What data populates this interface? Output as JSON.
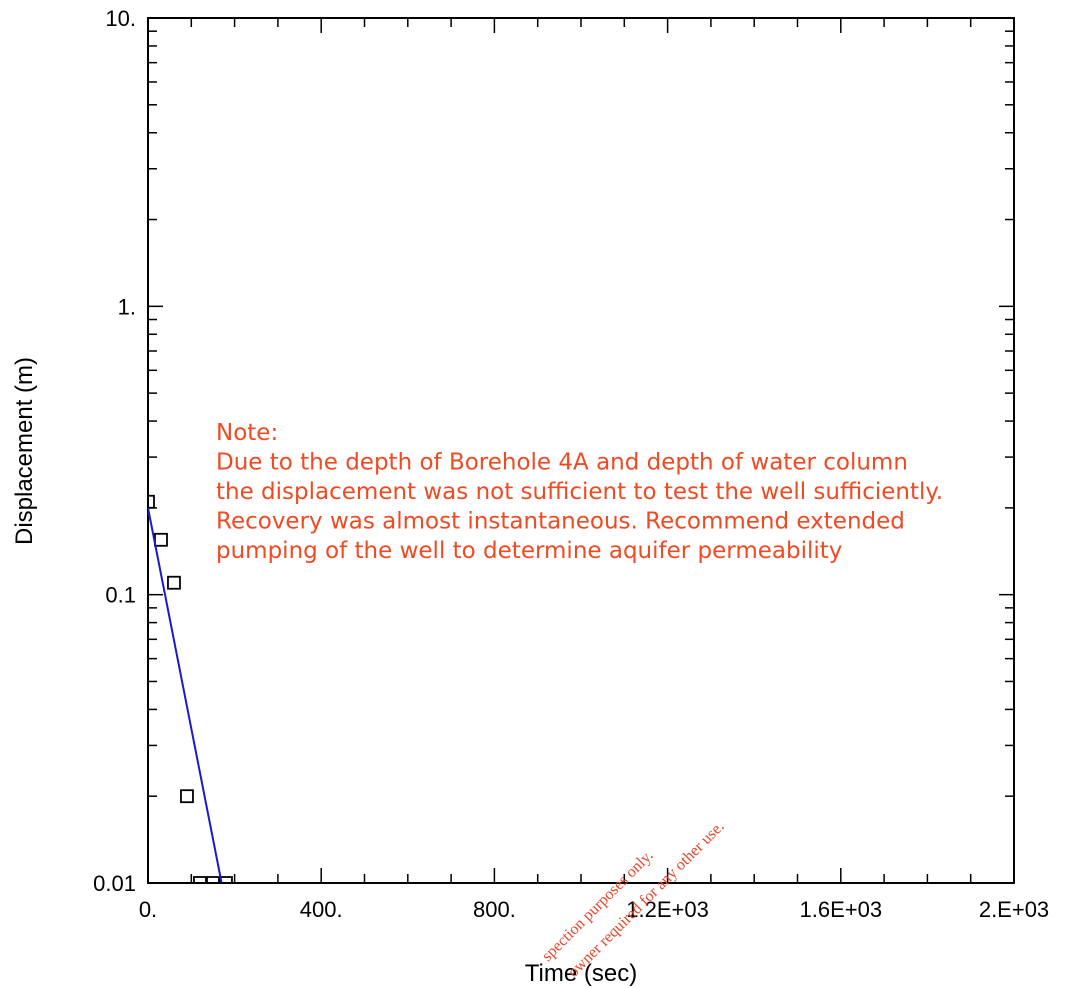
{
  "chart_data": {
    "type": "scatter",
    "title": "",
    "xlabel": "Time (sec)",
    "ylabel": "Displacement (m)",
    "xlim": [
      0,
      2000
    ],
    "ylim": [
      0.01,
      10
    ],
    "y_scale": "log",
    "x_ticks": [
      {
        "value": 0,
        "label": "0."
      },
      {
        "value": 400,
        "label": "400."
      },
      {
        "value": 800,
        "label": "800."
      },
      {
        "value": 1200,
        "label": "1.2E+03"
      },
      {
        "value": 1600,
        "label": "1.6E+03"
      },
      {
        "value": 2000,
        "label": "2.E+03"
      }
    ],
    "y_ticks": [
      {
        "value": 0.01,
        "label": "0.01"
      },
      {
        "value": 0.1,
        "label": "0.1"
      },
      {
        "value": 1,
        "label": "1."
      },
      {
        "value": 10,
        "label": "10."
      }
    ],
    "series": [
      {
        "marker": "open-square",
        "color": "#000000",
        "points": [
          {
            "x": 0,
            "y": 0.21
          },
          {
            "x": 30,
            "y": 0.155
          },
          {
            "x": 60,
            "y": 0.11
          },
          {
            "x": 90,
            "y": 0.02
          },
          {
            "x": 120,
            "y": 0.01
          },
          {
            "x": 150,
            "y": 0.01
          },
          {
            "x": 180,
            "y": 0.01
          }
        ]
      },
      {
        "type": "line",
        "color": "#1a1acc",
        "points": [
          {
            "x": 0,
            "y": 0.2
          },
          {
            "x": 170,
            "y": 0.01
          }
        ]
      }
    ],
    "annotations": [
      {
        "color": "#f04a23",
        "lines": [
          "Note:",
          "Due to the depth of Borehole 4A and depth of water column",
          "the displacement was not sufficient to test the well sufficiently.",
          "Recovery was almost instantaneous.  Recommend extended",
          "pumping of the well to determine aquifer permeability"
        ]
      }
    ],
    "watermark": {
      "color": "#e8442a",
      "lines": [
        "spection purposes only.",
        "owner required for any other use."
      ]
    }
  }
}
